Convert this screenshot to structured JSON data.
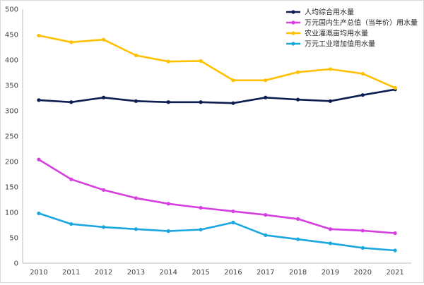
{
  "chart_data": {
    "type": "line",
    "title": "",
    "xlabel": "",
    "ylabel": "",
    "x": [
      "2010",
      "2011",
      "2012",
      "2013",
      "2014",
      "2015",
      "2016",
      "2017",
      "2018",
      "2019",
      "2020",
      "2021"
    ],
    "ylim": [
      0,
      500
    ],
    "yticks": [
      0,
      50,
      100,
      150,
      200,
      250,
      300,
      350,
      400,
      450,
      500
    ],
    "grid": false,
    "legend_position": "top-right",
    "series": [
      {
        "name": "人均综合用水量",
        "color": "#0b1d51",
        "values": [
          321,
          317,
          326,
          319,
          317,
          317,
          315,
          326,
          322,
          319,
          331,
          342
        ]
      },
      {
        "name": "万元国内生产总值（当年价）用水量",
        "color": "#d63ee0",
        "values": [
          204,
          165,
          144,
          128,
          117,
          109,
          102,
          95,
          87,
          67,
          64,
          59
        ]
      },
      {
        "name": "农业灌溉亩均用水量",
        "color": "#ffc000",
        "values": [
          448,
          435,
          440,
          409,
          397,
          398,
          360,
          360,
          376,
          382,
          373,
          345
        ]
      },
      {
        "name": "万元工业增加值用水量",
        "color": "#1aa7e0",
        "values": [
          98,
          77,
          71,
          67,
          63,
          66,
          80,
          55,
          47,
          39,
          30,
          25
        ]
      }
    ]
  }
}
